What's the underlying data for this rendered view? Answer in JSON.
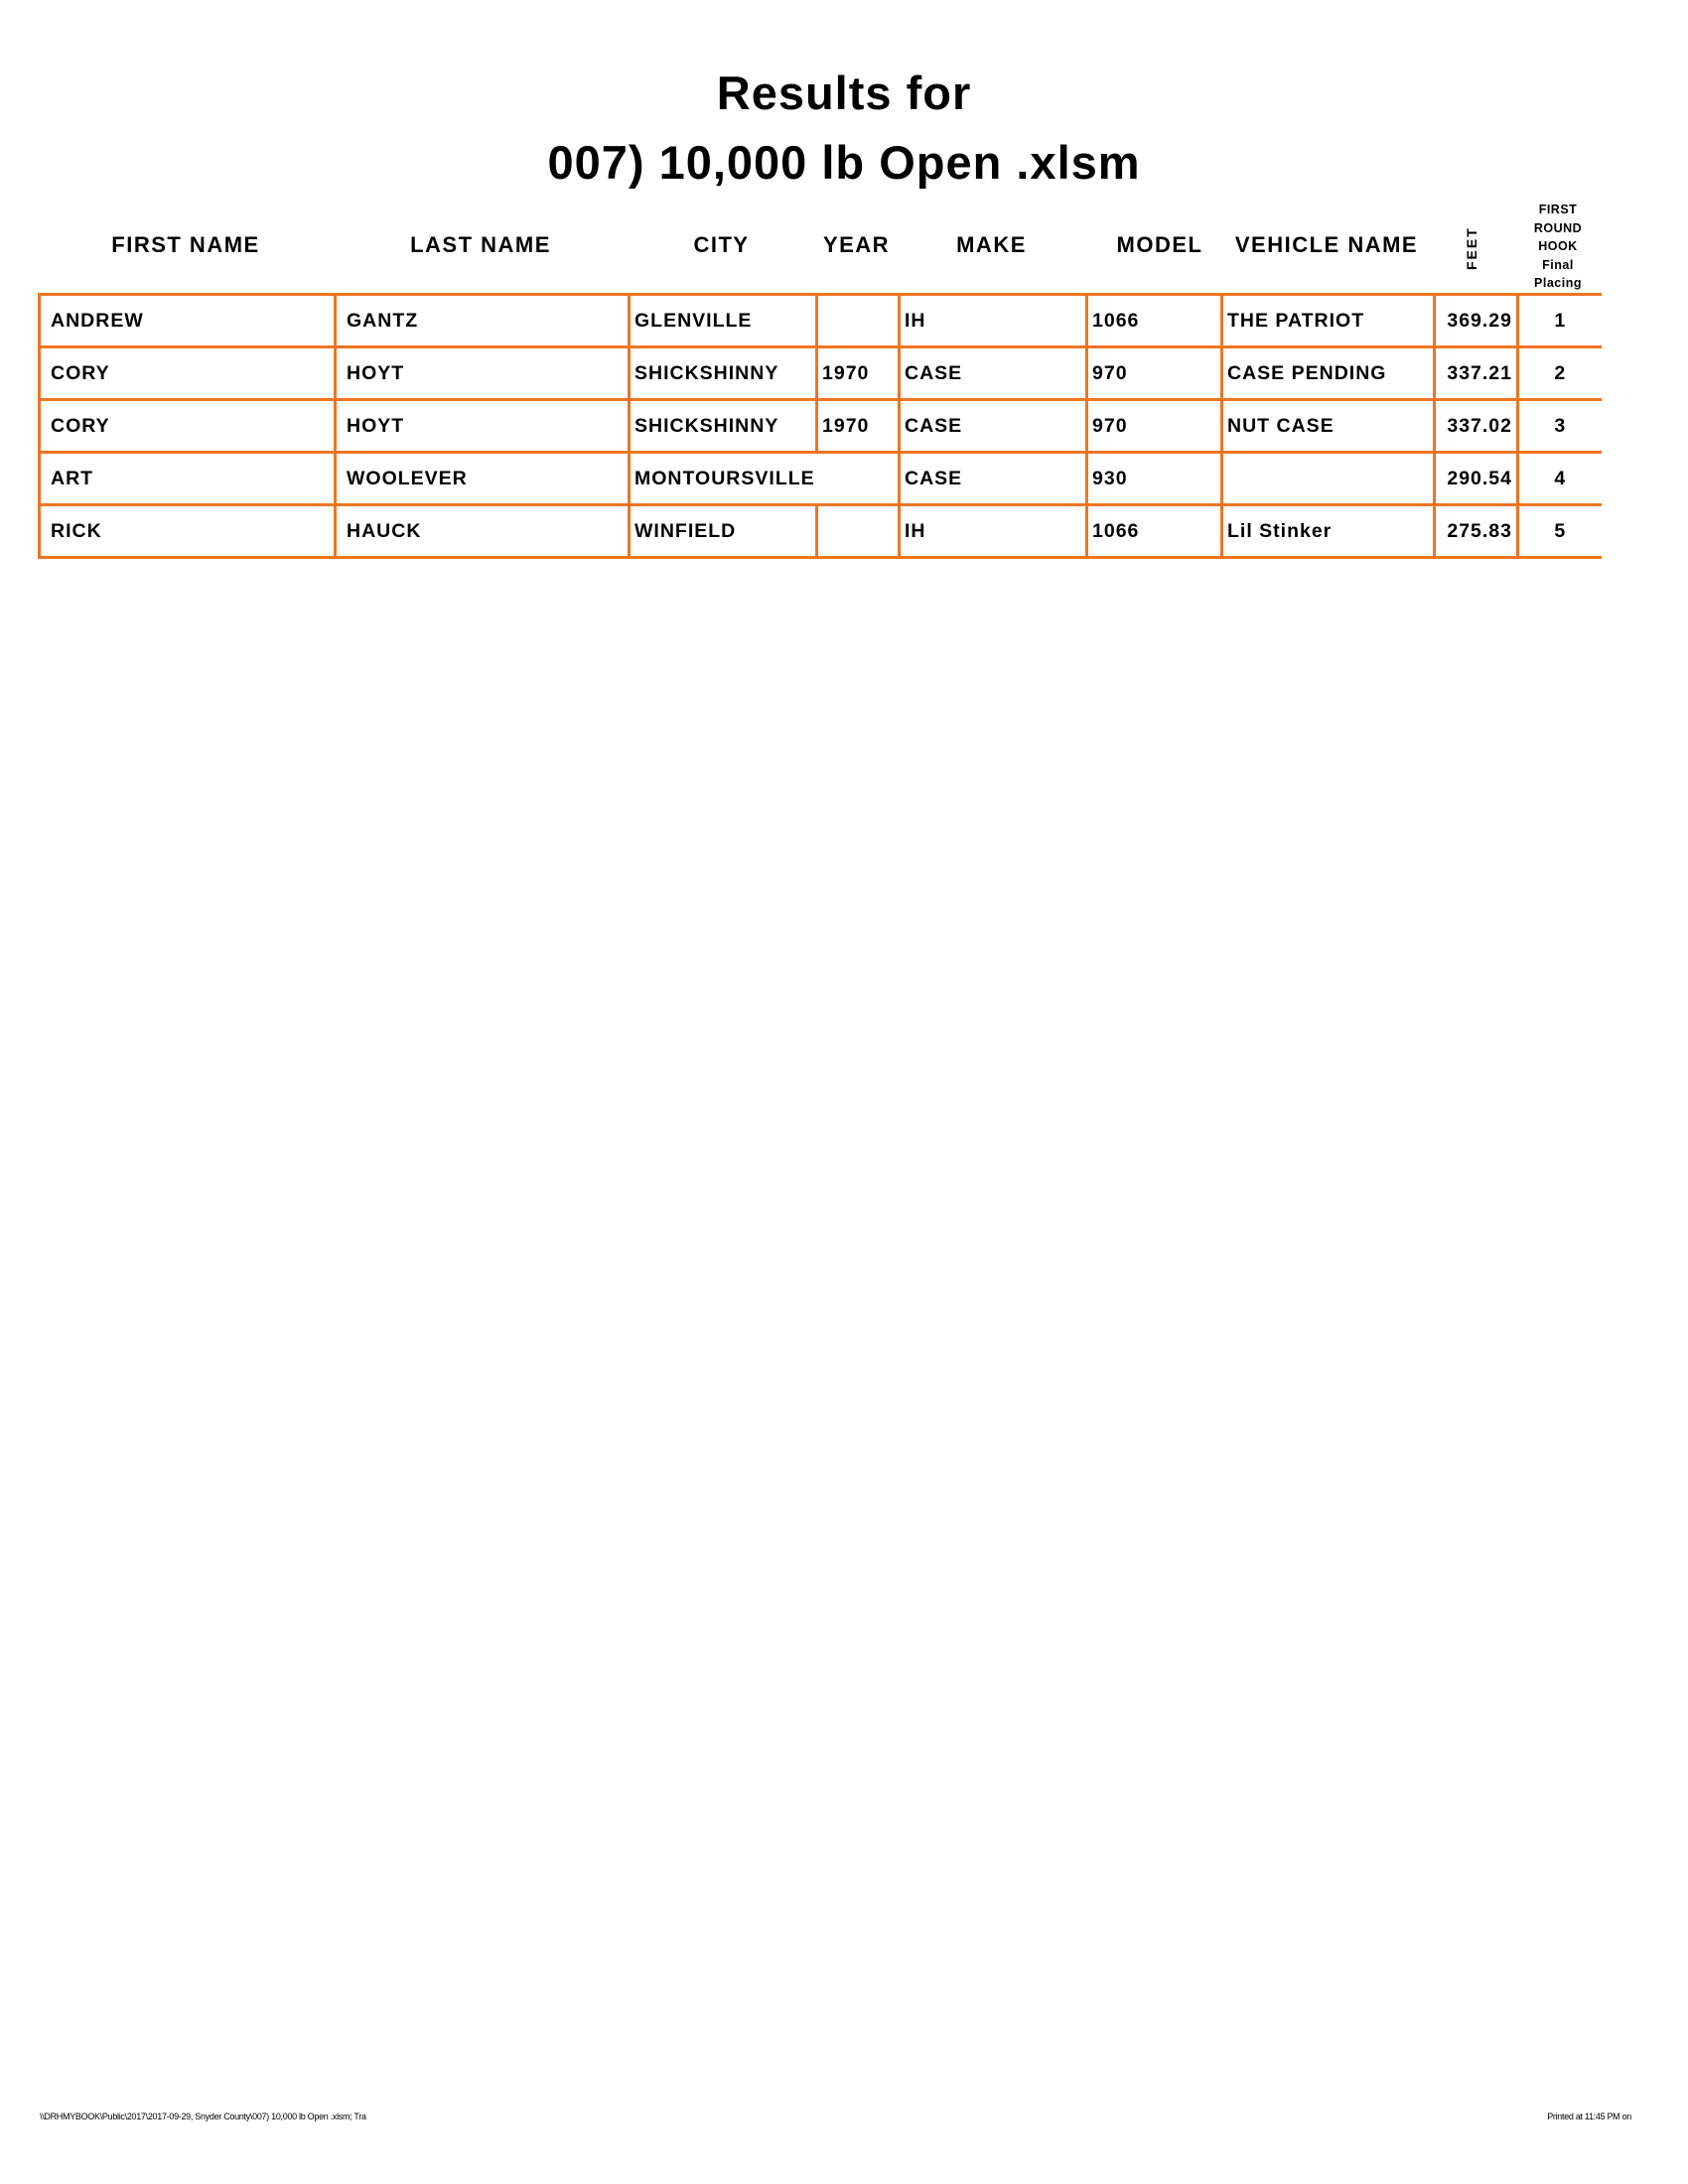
{
  "title": {
    "line1": "Results for",
    "line2": "007) 10,000 lb Open .xlsm"
  },
  "columns": {
    "first_name": "FIRST NAME",
    "last_name": "LAST NAME",
    "city": "CITY",
    "year": "YEAR",
    "make": "MAKE",
    "model": "MODEL",
    "vehicle_name": "VEHICLE NAME",
    "feet": "FEET",
    "placing": [
      "FIRST",
      "ROUND",
      "HOOK",
      "Final",
      "Placing"
    ]
  },
  "rows": [
    {
      "first_name": "ANDREW",
      "last_name": "GANTZ",
      "city": "GLENVILLE",
      "year": "",
      "make": "IH",
      "model": "1066",
      "vehicle_name": "THE PATRIOT",
      "feet": "369.29",
      "placing": "1"
    },
    {
      "first_name": "CORY",
      "last_name": "HOYT",
      "city": "SHICKSHINNY",
      "year": "1970",
      "make": "CASE",
      "model": "970",
      "vehicle_name": "CASE PENDING",
      "feet": "337.21",
      "placing": "2"
    },
    {
      "first_name": "CORY",
      "last_name": "HOYT",
      "city": "SHICKSHINNY",
      "year": "1970",
      "make": "CASE",
      "model": "970",
      "vehicle_name": "NUT CASE",
      "feet": "337.02",
      "placing": "3"
    },
    {
      "first_name": "ART",
      "last_name": "WOOLEVER",
      "city": "MONTOURSVILLE",
      "year": "",
      "make": "CASE",
      "model": "930",
      "vehicle_name": "",
      "feet": "290.54",
      "placing": "4"
    },
    {
      "first_name": "RICK",
      "last_name": "HAUCK",
      "city": "WINFIELD",
      "year": "",
      "make": "IH",
      "model": "1066",
      "vehicle_name": "Lil Stinker",
      "feet": "275.83",
      "placing": "5"
    }
  ],
  "footer": {
    "left": "\\\\DRHMYBOOK\\Public\\2017\\2017-09-29, Snyder County\\007) 10,000 lb Open .xlsm;  Tra",
    "right": "Printed at 11:45 PM on"
  },
  "colors": {
    "border": "#ee7522"
  }
}
